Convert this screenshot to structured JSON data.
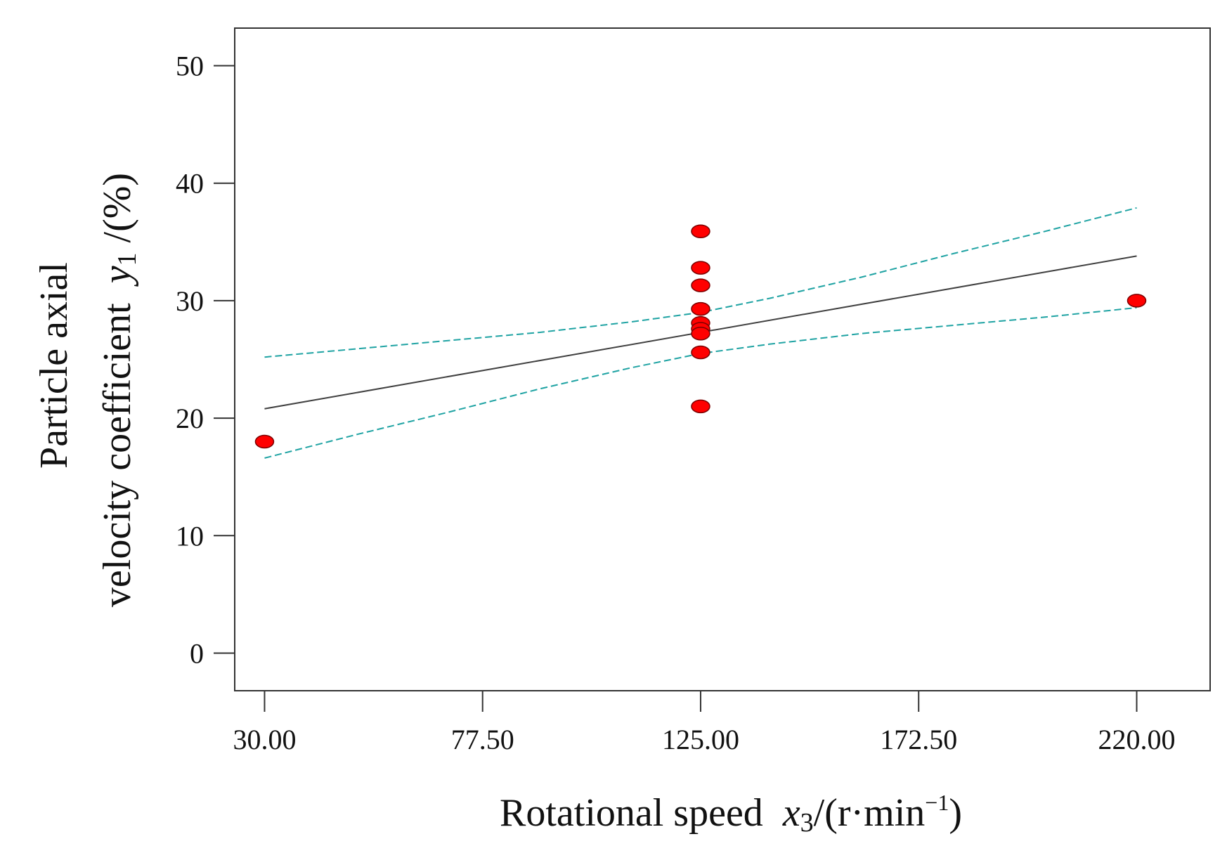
{
  "chart_data": {
    "type": "scatter",
    "title": "",
    "xlabel": {
      "main": "Rotational speed",
      "var": "x",
      "sub": "3",
      "unit_prefix": "/(r·min",
      "unit_sup": "−1",
      "unit_suffix": ")"
    },
    "ylabel": {
      "line1": "Particle axial",
      "line2_main": "velocity coefficient",
      "var": "y",
      "sub": "1",
      "unit": "/(%)"
    },
    "xlim": [
      23.5,
      236.0
    ],
    "ylim": [
      -3.2,
      53.2
    ],
    "xticks": [
      30,
      77.5,
      125,
      172.5,
      220
    ],
    "xtick_labels": [
      "30.00",
      "77.50",
      "125.00",
      "172.50",
      "220.00"
    ],
    "yticks": [
      0,
      10,
      20,
      30,
      40,
      50
    ],
    "ytick_labels": [
      "0",
      "10",
      "20",
      "30",
      "40",
      "50"
    ],
    "points": [
      {
        "x": 30,
        "y": 18.0
      },
      {
        "x": 125,
        "y": 35.9
      },
      {
        "x": 125,
        "y": 32.8
      },
      {
        "x": 125,
        "y": 31.3
      },
      {
        "x": 125,
        "y": 29.3
      },
      {
        "x": 125,
        "y": 28.1
      },
      {
        "x": 125,
        "y": 27.6
      },
      {
        "x": 125,
        "y": 27.2
      },
      {
        "x": 125,
        "y": 25.6
      },
      {
        "x": 125,
        "y": 21.0
      },
      {
        "x": 220,
        "y": 30.0
      }
    ],
    "fit_line": {
      "x": [
        30,
        220
      ],
      "y": [
        20.8,
        33.8
      ]
    },
    "ci_upper": {
      "x": [
        30,
        50,
        70,
        90,
        110,
        125,
        140,
        160,
        180,
        200,
        220
      ],
      "y": [
        25.2,
        25.9,
        26.6,
        27.3,
        28.2,
        29.0,
        30.2,
        32.0,
        34.0,
        35.9,
        37.9
      ]
    },
    "ci_lower": {
      "x": [
        30,
        50,
        70,
        90,
        110,
        125,
        140,
        160,
        180,
        200,
        220
      ],
      "y": [
        16.6,
        18.6,
        20.5,
        22.5,
        24.3,
        25.5,
        26.3,
        27.2,
        27.9,
        28.6,
        29.4
      ]
    },
    "colors": {
      "point_fill": "#ff0000",
      "point_stroke": "#7a0000",
      "fit_line": "#404040",
      "ci_line": "#1fa3a3",
      "axis": "#333333"
    }
  }
}
